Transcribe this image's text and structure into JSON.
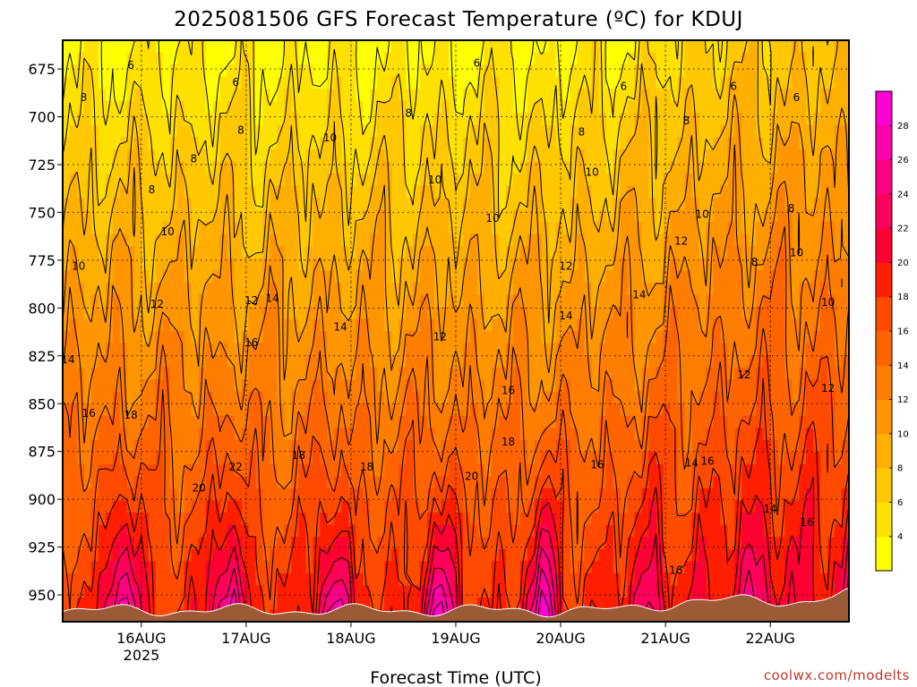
{
  "chart_data": {
    "type": "heatmap",
    "title": "2025081506 GFS Forecast Temperature (ºC) for KDUJ",
    "xlabel": "Forecast Time (UTC)",
    "ylabel": "",
    "credit": "coolwx.com/modelts",
    "y_axis": {
      "ticks": [
        675,
        700,
        725,
        750,
        775,
        800,
        825,
        850,
        875,
        900,
        925,
        950
      ],
      "range_hPa": [
        660,
        964
      ]
    },
    "x_axis": {
      "ticks": [
        "16AUG",
        "17AUG",
        "18AUG",
        "19AUG",
        "20AUG",
        "21AUG",
        "22AUG"
      ],
      "year_label": "2025",
      "range_days": [
        -0.75,
        6.75
      ]
    },
    "colorbar": {
      "ticks": [
        4,
        6,
        8,
        10,
        12,
        14,
        16,
        18,
        20,
        22,
        24,
        26,
        28
      ],
      "bins": [
        {
          "from": 2,
          "to": 4,
          "color": "#ffff00"
        },
        {
          "from": 4,
          "to": 6,
          "color": "#ffe100"
        },
        {
          "from": 6,
          "to": 8,
          "color": "#ffc800"
        },
        {
          "from": 8,
          "to": 10,
          "color": "#ffaf00"
        },
        {
          "from": 10,
          "to": 12,
          "color": "#ff9600"
        },
        {
          "from": 12,
          "to": 14,
          "color": "#ff7d00"
        },
        {
          "from": 14,
          "to": 16,
          "color": "#ff6400"
        },
        {
          "from": 16,
          "to": 18,
          "color": "#ff4b00"
        },
        {
          "from": 18,
          "to": 20,
          "color": "#ff1e00"
        },
        {
          "from": 20,
          "to": 22,
          "color": "#ff0032"
        },
        {
          "from": 22,
          "to": 24,
          "color": "#ff005a"
        },
        {
          "from": 24,
          "to": 26,
          "color": "#ff0082"
        },
        {
          "from": 26,
          "to": 28,
          "color": "#ff00aa"
        },
        {
          "from": 28,
          "to": 30,
          "color": "#ff00d2"
        }
      ]
    },
    "ground_color": "#9c5a36",
    "contour_labels": [
      {
        "t": -0.1,
        "p": 673,
        "v": "6"
      },
      {
        "t": 0.9,
        "p": 682,
        "v": "6"
      },
      {
        "t": 3.2,
        "p": 672,
        "v": "6"
      },
      {
        "t": 4.6,
        "p": 684,
        "v": "6"
      },
      {
        "t": 5.65,
        "p": 684,
        "v": "6"
      },
      {
        "t": 6.25,
        "p": 690,
        "v": "6"
      },
      {
        "t": -0.55,
        "p": 690,
        "v": "8"
      },
      {
        "t": 0.5,
        "p": 722,
        "v": "8"
      },
      {
        "t": 0.95,
        "p": 707,
        "v": "8"
      },
      {
        "t": 2.55,
        "p": 698,
        "v": "8"
      },
      {
        "t": 4.2,
        "p": 708,
        "v": "8"
      },
      {
        "t": 0.1,
        "p": 738,
        "v": "8"
      },
      {
        "t": 5.2,
        "p": 702,
        "v": "8"
      },
      {
        "t": 6.2,
        "p": 748,
        "v": "8"
      },
      {
        "t": 5.85,
        "p": 776,
        "v": "8"
      },
      {
        "t": 1.8,
        "p": 711,
        "v": "10"
      },
      {
        "t": 2.8,
        "p": 733,
        "v": "10"
      },
      {
        "t": 3.35,
        "p": 753,
        "v": "10"
      },
      {
        "t": 4.3,
        "p": 729,
        "v": "10"
      },
      {
        "t": 5.35,
        "p": 751,
        "v": "10"
      },
      {
        "t": 6.25,
        "p": 771,
        "v": "10"
      },
      {
        "t": 6.55,
        "p": 797,
        "v": "10"
      },
      {
        "t": 0.25,
        "p": 760,
        "v": "10"
      },
      {
        "t": -0.6,
        "p": 778,
        "v": "10"
      },
      {
        "t": 0.15,
        "p": 798,
        "v": "12"
      },
      {
        "t": 1.05,
        "p": 796,
        "v": "12"
      },
      {
        "t": 2.85,
        "p": 815,
        "v": "12"
      },
      {
        "t": 4.05,
        "p": 778,
        "v": "12"
      },
      {
        "t": 5.15,
        "p": 765,
        "v": "12"
      },
      {
        "t": 5.75,
        "p": 835,
        "v": "12"
      },
      {
        "t": 6.55,
        "p": 842,
        "v": "12"
      },
      {
        "t": -0.7,
        "p": 827,
        "v": "14"
      },
      {
        "t": 1.25,
        "p": 795,
        "v": "14"
      },
      {
        "t": 1.9,
        "p": 810,
        "v": "14"
      },
      {
        "t": 4.05,
        "p": 804,
        "v": "14"
      },
      {
        "t": 4.75,
        "p": 793,
        "v": "14"
      },
      {
        "t": 5.25,
        "p": 881,
        "v": "14"
      },
      {
        "t": 6.0,
        "p": 905,
        "v": "14"
      },
      {
        "t": 6.8,
        "p": 854,
        "v": "14"
      },
      {
        "t": -0.5,
        "p": 855,
        "v": "16"
      },
      {
        "t": 1.05,
        "p": 818,
        "v": "16"
      },
      {
        "t": 3.5,
        "p": 843,
        "v": "16"
      },
      {
        "t": 4.35,
        "p": 882,
        "v": "16"
      },
      {
        "t": 5.4,
        "p": 880,
        "v": "16"
      },
      {
        "t": 5.1,
        "p": 937,
        "v": "16"
      },
      {
        "t": 6.35,
        "p": 912,
        "v": "16"
      },
      {
        "t": -0.1,
        "p": 856,
        "v": "18"
      },
      {
        "t": 1.5,
        "p": 877,
        "v": "18"
      },
      {
        "t": 2.15,
        "p": 883,
        "v": "18"
      },
      {
        "t": 3.5,
        "p": 870,
        "v": "18"
      },
      {
        "t": 0.55,
        "p": 894,
        "v": "20"
      },
      {
        "t": 3.15,
        "p": 888,
        "v": "20"
      },
      {
        "t": 0.9,
        "p": 883,
        "v": "22"
      }
    ]
  }
}
